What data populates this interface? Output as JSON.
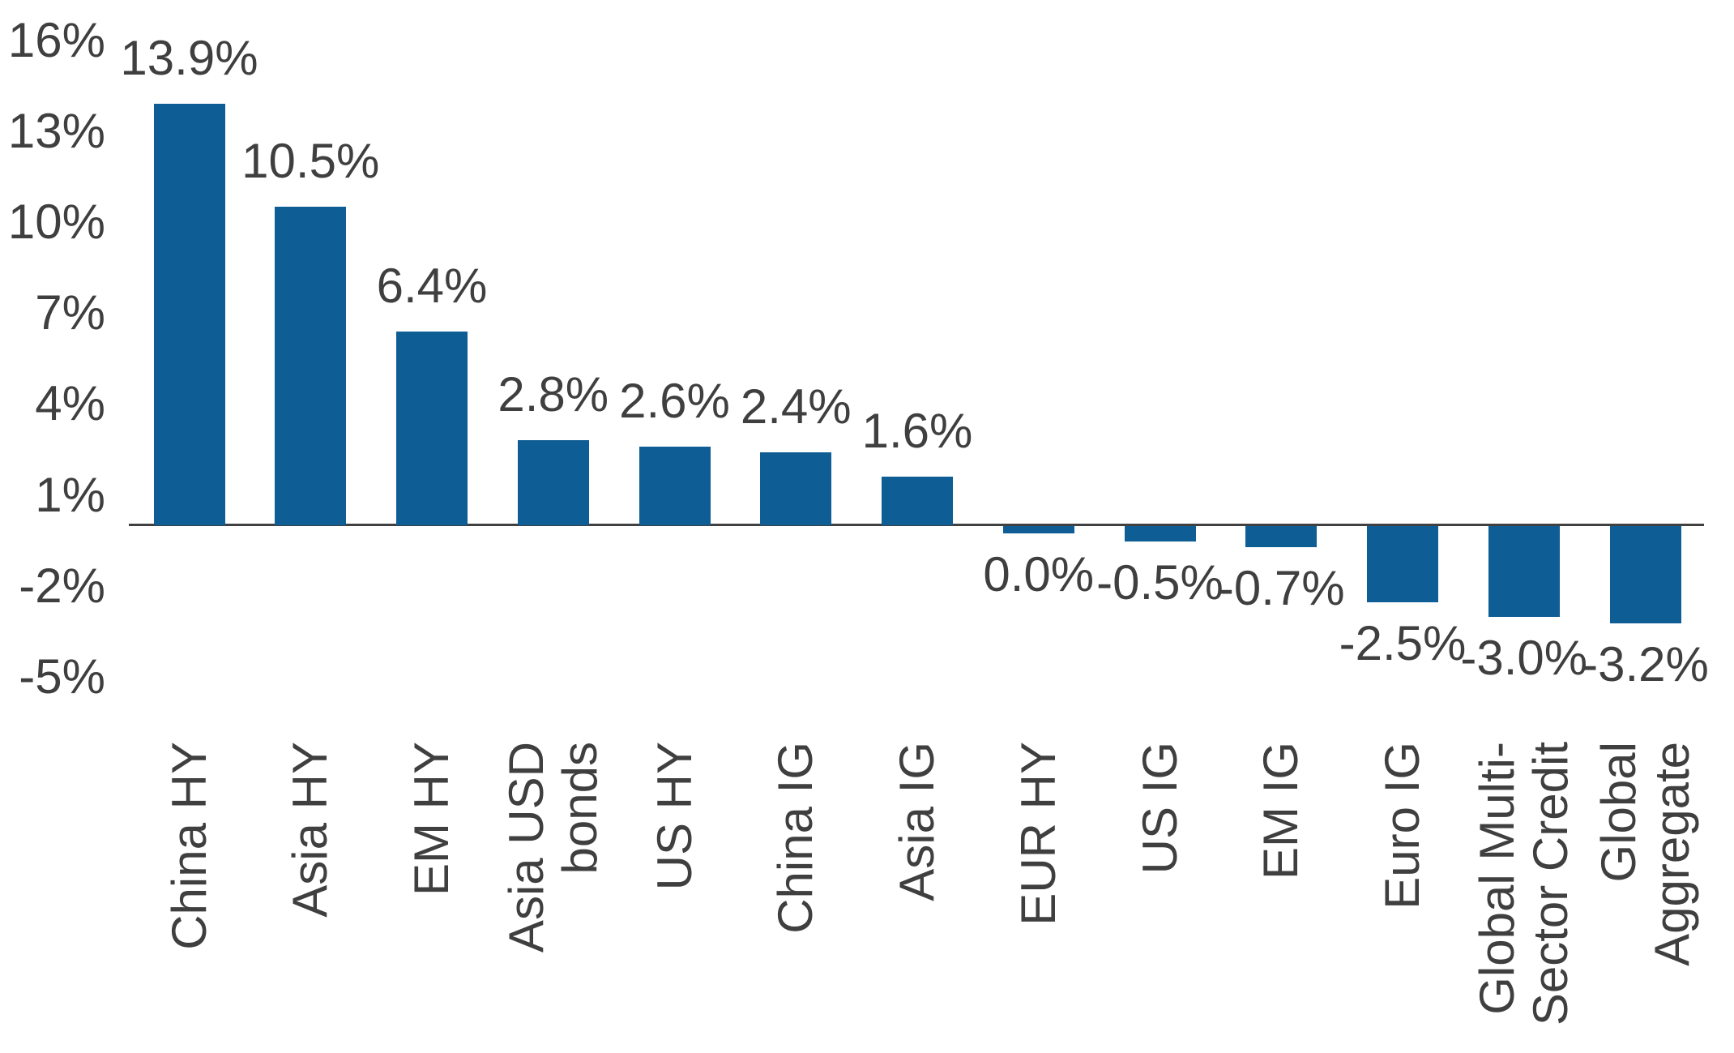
{
  "chart_data": {
    "type": "bar",
    "title": "",
    "categories": [
      "China HY",
      "Asia HY",
      "EM HY",
      "Asia USD bonds",
      "US HY",
      "China IG",
      "Asia IG",
      "EUR HY",
      "US IG",
      "EM IG",
      "Euro IG",
      "Global Multi-Sector Credit",
      "Global Aggregate"
    ],
    "categories_lines": [
      [
        "China HY"
      ],
      [
        "Asia HY"
      ],
      [
        "EM HY"
      ],
      [
        "Asia USD",
        "bonds"
      ],
      [
        "US HY"
      ],
      [
        "China IG"
      ],
      [
        "Asia IG"
      ],
      [
        "EUR HY"
      ],
      [
        "US IG"
      ],
      [
        "EM IG"
      ],
      [
        "Euro IG"
      ],
      [
        "Global Multi-",
        "Sector Credit"
      ],
      [
        "Global",
        "Aggregate"
      ]
    ],
    "values": [
      13.9,
      10.5,
      6.4,
      2.8,
      2.6,
      2.4,
      1.6,
      0.0,
      -0.5,
      -0.7,
      -2.5,
      -3.0,
      -3.2
    ],
    "data_labels": [
      "13.9%",
      "10.5%",
      "6.4%",
      "2.8%",
      "2.6%",
      "2.4%",
      "1.6%",
      "0.0%",
      "-0.5%",
      "-0.7%",
      "-2.5%",
      "-3.0%",
      "-3.2%"
    ],
    "y_ticks": [
      "16%",
      "13%",
      "10%",
      "7%",
      "4%",
      "1%",
      "-2%",
      "-5%"
    ],
    "y_tick_values": [
      16,
      13,
      10,
      7,
      4,
      1,
      -2,
      -5
    ],
    "ylim": [
      -5,
      16
    ],
    "xlabel": "",
    "ylabel": "",
    "grid": false,
    "legend": false,
    "bar_color": "#0e5d94",
    "text_color": "#3f3f3f",
    "axis_color": "#404040"
  }
}
